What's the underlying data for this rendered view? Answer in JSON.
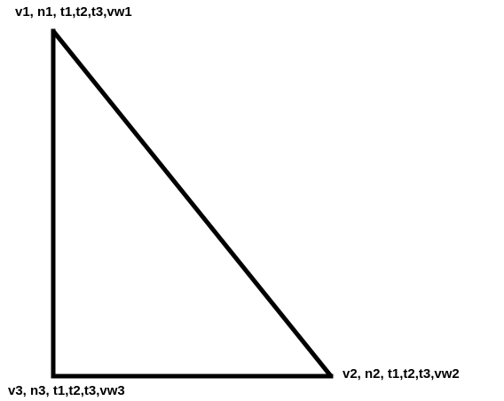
{
  "diagram": {
    "title": "",
    "shape": "right triangle",
    "stroke_color": "#000000",
    "background_color": "#ffffff",
    "vertices": [
      {
        "id": "v1",
        "label": "v1, n1, t1,t2,t3,vw1"
      },
      {
        "id": "v2",
        "label": "v2, n2, t1,t2,t3,vw2"
      },
      {
        "id": "v3",
        "label": "v3, n3, t1,t2,t3,vw3"
      }
    ]
  }
}
